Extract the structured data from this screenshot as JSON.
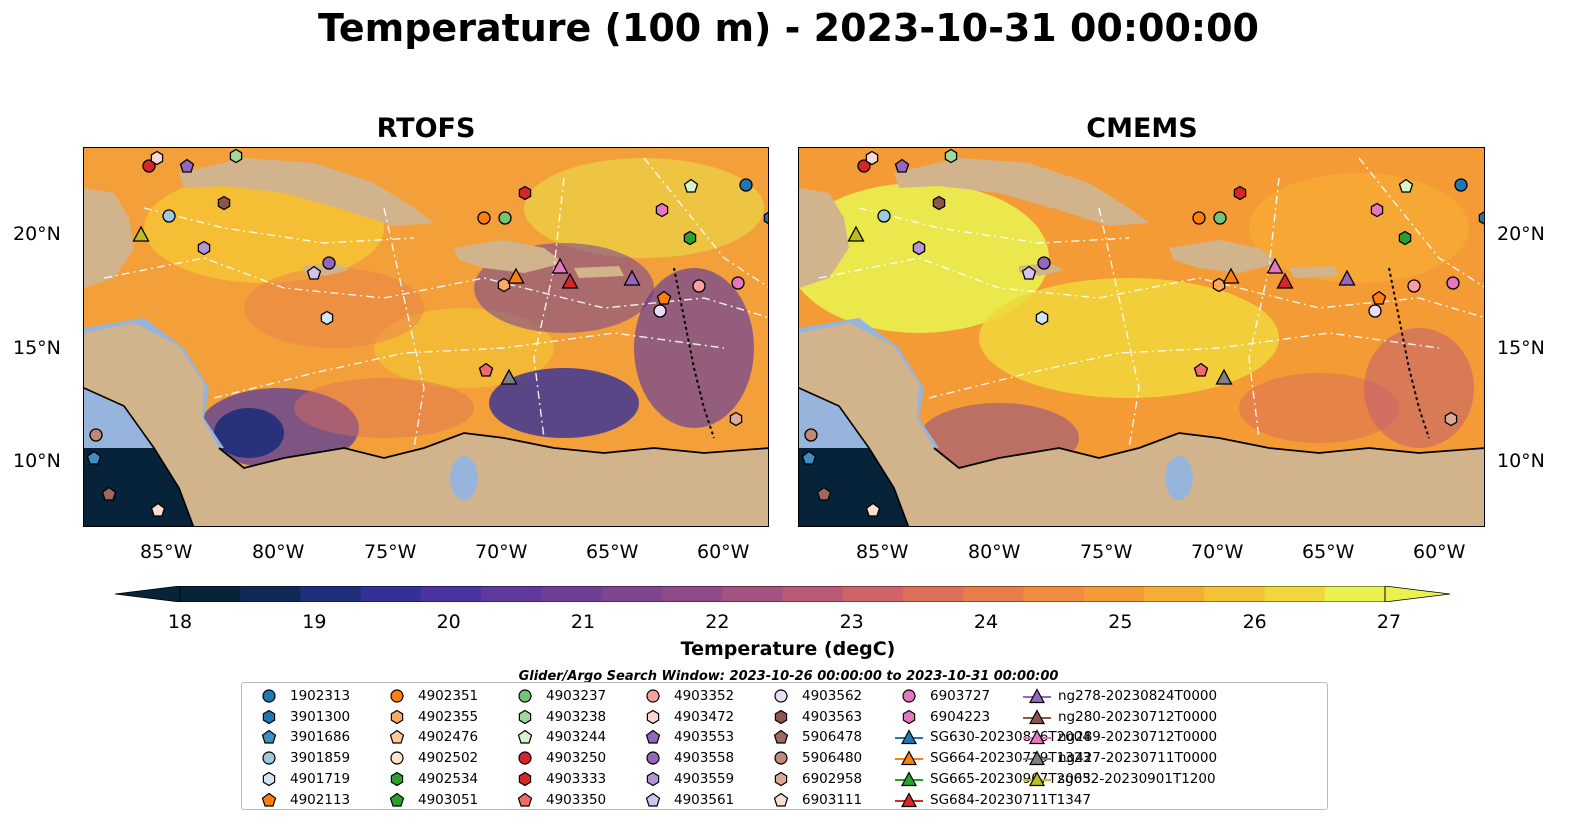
{
  "title": "Temperature (100 m) - 2023-10-31 00:00:00",
  "panels": [
    {
      "title": "RTOFS"
    },
    {
      "title": "CMEMS"
    }
  ],
  "lat_labels": [
    "20°N",
    "15°N",
    "10°N"
  ],
  "lon_labels": [
    "85°W",
    "80°W",
    "75°W",
    "70°W",
    "65°W",
    "60°W"
  ],
  "colorbar": {
    "label": "Temperature (degC)",
    "ticks": [
      "18",
      "19",
      "20",
      "21",
      "22",
      "23",
      "24",
      "25",
      "26",
      "27"
    ],
    "range": [
      18,
      27
    ],
    "colors": [
      "#07233a",
      "#0f2a55",
      "#1f2e7a",
      "#33309a",
      "#4b33a3",
      "#60399e",
      "#6f3f96",
      "#7e4590",
      "#8e4b88",
      "#a4527f",
      "#bb5a75",
      "#cf6367",
      "#de6f58",
      "#e97c4b",
      "#f08b40",
      "#f49b36",
      "#f6ad33",
      "#f4c236",
      "#f0d73b",
      "#e9f14f"
    ]
  },
  "search_window": "Glider/Argo Search Window: 2023-10-26 00:00:00 to 2023-10-31 00:00:00",
  "colors": {
    "land": "#d2b48c",
    "shelf": "#96b4dc",
    "tab_blue": "#1f77b4",
    "tab_orange": "#ff7f0e",
    "tab_green": "#2ca02c",
    "tab_red": "#d62728",
    "tab_purple": "#9467bd",
    "tab_brown": "#8c564b",
    "tab_pink": "#e377c2",
    "tab_gray": "#7f7f7f",
    "tab_olive": "#bcbd22"
  },
  "legend": [
    {
      "label": "1902313",
      "marker": "circle",
      "color": "#1f77b4"
    },
    {
      "label": "3901300",
      "marker": "hexagon",
      "color": "#1f77b4"
    },
    {
      "label": "3901686",
      "marker": "pentagon",
      "color": "#3d8fc4"
    },
    {
      "label": "3901859",
      "marker": "circle",
      "color": "#9ecae1"
    },
    {
      "label": "4901719",
      "marker": "hexagon",
      "color": "#d0e6f5"
    },
    {
      "label": "4902113",
      "marker": "pentagon",
      "color": "#ff7f0e"
    },
    {
      "label": "4902351",
      "marker": "circle",
      "color": "#ff7f0e"
    },
    {
      "label": "4902355",
      "marker": "hexagon",
      "color": "#ffa95e"
    },
    {
      "label": "4902476",
      "marker": "pentagon",
      "color": "#ffc99c"
    },
    {
      "label": "4902502",
      "marker": "circle",
      "color": "#ffe6cc"
    },
    {
      "label": "4902534",
      "marker": "hexagon",
      "color": "#2ca02c"
    },
    {
      "label": "4903051",
      "marker": "pentagon",
      "color": "#2ca02c"
    },
    {
      "label": "4903237",
      "marker": "circle",
      "color": "#74c476"
    },
    {
      "label": "4903238",
      "marker": "hexagon",
      "color": "#a1d99b"
    },
    {
      "label": "4903244",
      "marker": "pentagon",
      "color": "#d7f5c8"
    },
    {
      "label": "4903250",
      "marker": "circle",
      "color": "#d62728"
    },
    {
      "label": "4903333",
      "marker": "hexagon",
      "color": "#d62728"
    },
    {
      "label": "4903350",
      "marker": "pentagon",
      "color": "#f06a6a"
    },
    {
      "label": "4903352",
      "marker": "circle",
      "color": "#fa9f9f"
    },
    {
      "label": "4903472",
      "marker": "hexagon",
      "color": "#ffd6d6"
    },
    {
      "label": "4903553",
      "marker": "pentagon",
      "color": "#9467bd"
    },
    {
      "label": "4903558",
      "marker": "circle",
      "color": "#9467bd"
    },
    {
      "label": "4903559",
      "marker": "hexagon",
      "color": "#b195d6"
    },
    {
      "label": "4903561",
      "marker": "pentagon",
      "color": "#d4c2ee"
    },
    {
      "label": "4903562",
      "marker": "circle",
      "color": "#e8dcf8"
    },
    {
      "label": "4903563",
      "marker": "hexagon",
      "color": "#8c564b"
    },
    {
      "label": "5906478",
      "marker": "pentagon",
      "color": "#a0675b"
    },
    {
      "label": "5906480",
      "marker": "circle",
      "color": "#c08878"
    },
    {
      "label": "6902958",
      "marker": "hexagon",
      "color": "#dcaa98"
    },
    {
      "label": "6903111",
      "marker": "pentagon",
      "color": "#fadcd2"
    },
    {
      "label": "6903727",
      "marker": "circle",
      "color": "#e377c2"
    },
    {
      "label": "6904223",
      "marker": "hexagon",
      "color": "#e377c2"
    },
    {
      "label": "SG630-20230826T2004",
      "marker": "triangle",
      "color": "#1f77b4"
    },
    {
      "label": "SG664-20230719T1323",
      "marker": "triangle",
      "color": "#ff7f0e"
    },
    {
      "label": "SG665-20230907T2003",
      "marker": "triangle",
      "color": "#2ca02c"
    },
    {
      "label": "SG684-20230711T1347",
      "marker": "triangle",
      "color": "#d62728"
    },
    {
      "label": "ng278-20230824T0000",
      "marker": "triangle",
      "color": "#9467bd"
    },
    {
      "label": "ng280-20230712T0000",
      "marker": "triangle",
      "color": "#8c564b"
    },
    {
      "label": "ng289-20230712T0000",
      "marker": "triangle",
      "color": "#e377c2"
    },
    {
      "label": "ng427-20230711T0000",
      "marker": "triangle",
      "color": "#7f7f7f"
    },
    {
      "label": "sg652-20230901T1200",
      "marker": "triangle",
      "color": "#bcbd22"
    }
  ]
}
